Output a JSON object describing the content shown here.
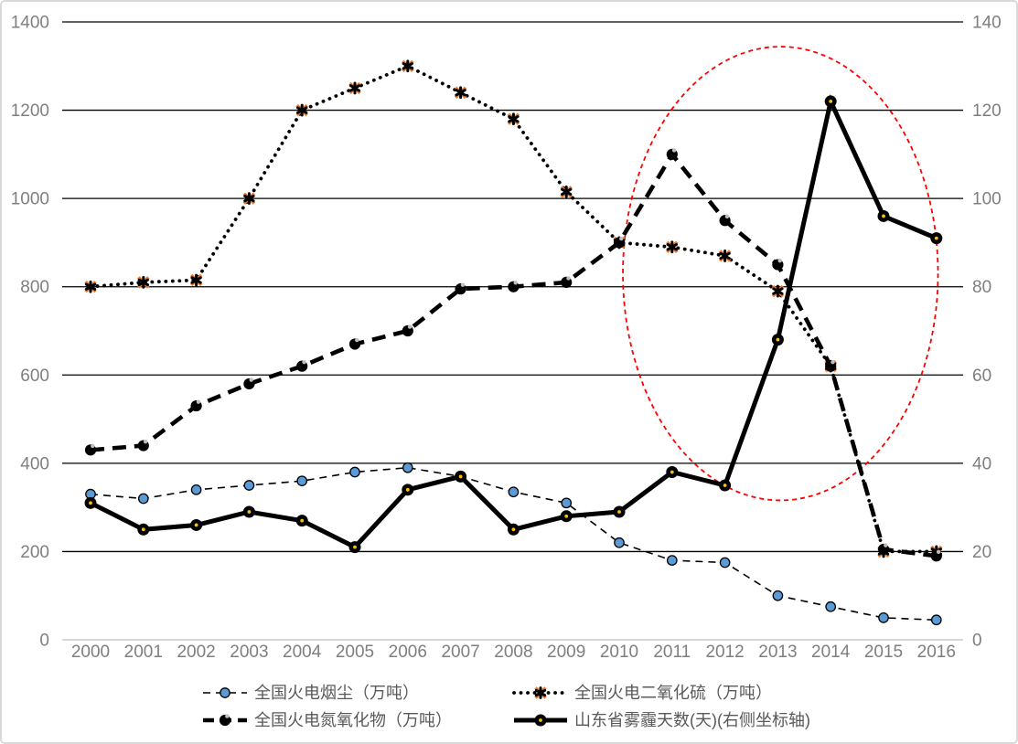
{
  "chart_data": {
    "type": "line",
    "title": "",
    "x_label": "",
    "categories": [
      2000,
      2001,
      2002,
      2003,
      2004,
      2005,
      2006,
      2007,
      2008,
      2009,
      2010,
      2011,
      2012,
      2013,
      2014,
      2015,
      2016
    ],
    "left_axis": {
      "min": 0,
      "max": 1400,
      "step": 200,
      "tick_labels": [
        "0",
        "200",
        "400",
        "600",
        "800",
        "1000",
        "1200",
        "1400"
      ]
    },
    "right_axis": {
      "min": 0,
      "max": 140,
      "step": 20,
      "tick_labels": [
        "0",
        "20",
        "40",
        "60",
        "80",
        "100",
        "120",
        "140"
      ]
    },
    "grid": "horizontal-black",
    "series": [
      {
        "name": "全国火电烟尘（万吨）",
        "axis": "left",
        "line_style": "thin-dashed",
        "marker": "blue-circle",
        "values": [
          330,
          320,
          340,
          350,
          360,
          380,
          390,
          370,
          335,
          310,
          220,
          180,
          175,
          100,
          75,
          50,
          45
        ]
      },
      {
        "name": "全国火电二氧化硫（万吨）",
        "axis": "left",
        "line_style": "dotted",
        "marker": "black-star-orange-x",
        "values": [
          800,
          810,
          815,
          1000,
          1200,
          1250,
          1300,
          1240,
          1180,
          1015,
          900,
          890,
          870,
          790,
          620,
          200,
          200
        ]
      },
      {
        "name": "全国火电氮氧化物（万吨）",
        "axis": "left",
        "line_style": "thick-dashed",
        "marker": "black-circle-grey-dot",
        "values": [
          430,
          440,
          530,
          580,
          620,
          670,
          700,
          795,
          800,
          810,
          900,
          1100,
          950,
          850,
          620,
          205,
          190
        ]
      },
      {
        "name": "山东省雾霾天数(天)(右侧坐标轴)",
        "axis": "right",
        "line_style": "thick-solid",
        "marker": "black-circle-yellow-dot",
        "values": [
          31,
          25,
          26,
          29,
          27,
          21,
          34,
          37,
          25,
          28,
          29,
          38,
          35,
          68,
          122,
          96,
          91
        ]
      }
    ],
    "annotation": {
      "type": "ellipse",
      "style": "dashed",
      "color": "#FF0000",
      "center_year": 2013.05,
      "center_value_left": 830,
      "radius_years": 2.98,
      "radius_value_left": 514
    },
    "legend": {
      "position": "bottom",
      "items": [
        {
          "label": "全国火电烟尘（万吨）",
          "series": 0
        },
        {
          "label": "全国火电二氧化硫（万吨）",
          "series": 1
        },
        {
          "label": "全国火电氮氧化物（万吨）",
          "series": 2
        },
        {
          "label": "山东省雾霾天数(天)(右侧坐标轴)",
          "series": 3
        }
      ]
    }
  },
  "colors": {
    "grid_line": "#000000",
    "baseline": "#d9d9d9",
    "axis_tick_text": "#7f7f7f",
    "legend_text": "#595959",
    "line_black": "#000000",
    "marker_blue": "#5B9BD5",
    "marker_orange": "#ED7D31",
    "marker_yellow": "#FFC000",
    "marker_grey_notch": "#BFBFBF",
    "annotation_red": "#FF0000"
  }
}
